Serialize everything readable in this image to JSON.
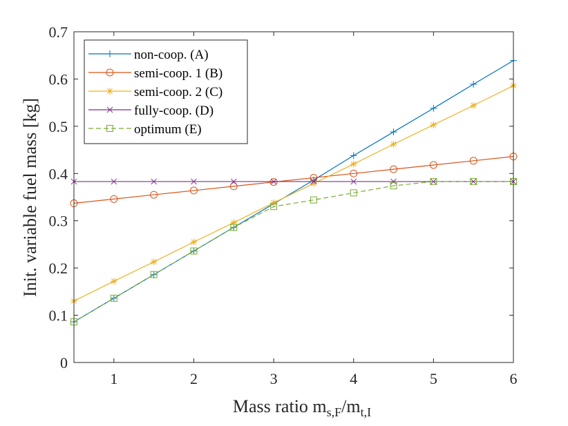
{
  "chart_data": {
    "type": "line",
    "title": "",
    "xlabel": "Mass ratio m",
    "xlabel_sub_1": "s,F",
    "xlabel_sep": "/m",
    "xlabel_sub_2": "t,I",
    "ylabel": "Init. variable fuel mass [kg]",
    "xlim": [
      0.5,
      6
    ],
    "ylim": [
      0,
      0.7
    ],
    "xticks": [
      1,
      2,
      3,
      4,
      5,
      6
    ],
    "xtick_labels": [
      "1",
      "2",
      "3",
      "4",
      "5",
      "6"
    ],
    "yticks": [
      0,
      0.1,
      0.2,
      0.3,
      0.4,
      0.5,
      0.6,
      0.7
    ],
    "ytick_labels": [
      "0",
      "0.1",
      "0.2",
      "0.3",
      "0.4",
      "0.5",
      "0.6",
      "0.7"
    ],
    "grid": false,
    "legend_position": "top-left",
    "x": [
      0.5,
      1,
      1.5,
      2,
      2.5,
      3,
      3.5,
      4,
      4.5,
      5,
      5.5,
      6
    ],
    "series": [
      {
        "name": "non-coop. (A)",
        "color": "#0072BD",
        "marker": "plus",
        "dash": "solid",
        "values": [
          0.086,
          0.136,
          0.186,
          0.236,
          0.286,
          0.336,
          0.386,
          0.438,
          0.488,
          0.538,
          0.589,
          0.639
        ]
      },
      {
        "name": "semi-coop. 1 (B)",
        "color": "#D95319",
        "marker": "circle",
        "dash": "solid",
        "values": [
          0.337,
          0.346,
          0.355,
          0.364,
          0.373,
          0.382,
          0.391,
          0.4,
          0.409,
          0.418,
          0.427,
          0.436
        ]
      },
      {
        "name": "semi-coop. 2 (C)",
        "color": "#EDB120",
        "marker": "star",
        "dash": "solid",
        "values": [
          0.13,
          0.172,
          0.213,
          0.255,
          0.296,
          0.338,
          0.379,
          0.42,
          0.462,
          0.503,
          0.544,
          0.586
        ]
      },
      {
        "name": "fully-coop. (D)",
        "color": "#7E2F8E",
        "marker": "x",
        "dash": "solid",
        "values": [
          0.383,
          0.383,
          0.383,
          0.383,
          0.383,
          0.383,
          0.383,
          0.383,
          0.383,
          0.383,
          0.383,
          0.383
        ]
      },
      {
        "name": "optimum (E)",
        "color": "#77AC30",
        "marker": "square",
        "dash": "dashed",
        "values": [
          0.086,
          0.136,
          0.186,
          0.236,
          0.286,
          0.33,
          0.344,
          0.359,
          0.374,
          0.383,
          0.383,
          0.383
        ]
      }
    ]
  }
}
